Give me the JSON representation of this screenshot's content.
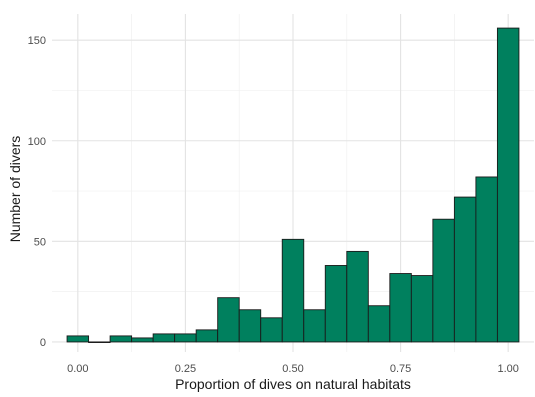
{
  "chart_data": {
    "type": "bar",
    "xlabel": "Proportion of dives on natural habitats",
    "ylabel": "Number of divers",
    "xlim": [
      -0.06,
      1.06
    ],
    "ylim": [
      -5,
      163
    ],
    "x_ticks": [
      0.0,
      0.25,
      0.5,
      0.75,
      1.0
    ],
    "x_tick_labels": [
      "0.00",
      "0.25",
      "0.50",
      "0.75",
      "1.00"
    ],
    "y_ticks": [
      0,
      50,
      100,
      150
    ],
    "y_tick_labels": [
      "0",
      "50",
      "100",
      "150"
    ],
    "grid": true,
    "bar_color": "#00805e",
    "bin_width": 0.05,
    "bins": [
      {
        "center": 0.0,
        "count": 3
      },
      {
        "center": 0.05,
        "count": 0
      },
      {
        "center": 0.1,
        "count": 3
      },
      {
        "center": 0.15,
        "count": 2
      },
      {
        "center": 0.2,
        "count": 4
      },
      {
        "center": 0.25,
        "count": 4
      },
      {
        "center": 0.3,
        "count": 6
      },
      {
        "center": 0.35,
        "count": 22
      },
      {
        "center": 0.4,
        "count": 16
      },
      {
        "center": 0.45,
        "count": 12
      },
      {
        "center": 0.5,
        "count": 51
      },
      {
        "center": 0.55,
        "count": 16
      },
      {
        "center": 0.6,
        "count": 38
      },
      {
        "center": 0.65,
        "count": 45
      },
      {
        "center": 0.7,
        "count": 18
      },
      {
        "center": 0.75,
        "count": 34
      },
      {
        "center": 0.8,
        "count": 33
      },
      {
        "center": 0.85,
        "count": 61
      },
      {
        "center": 0.9,
        "count": 72
      },
      {
        "center": 0.95,
        "count": 82
      },
      {
        "center": 1.0,
        "count": 156
      }
    ]
  }
}
